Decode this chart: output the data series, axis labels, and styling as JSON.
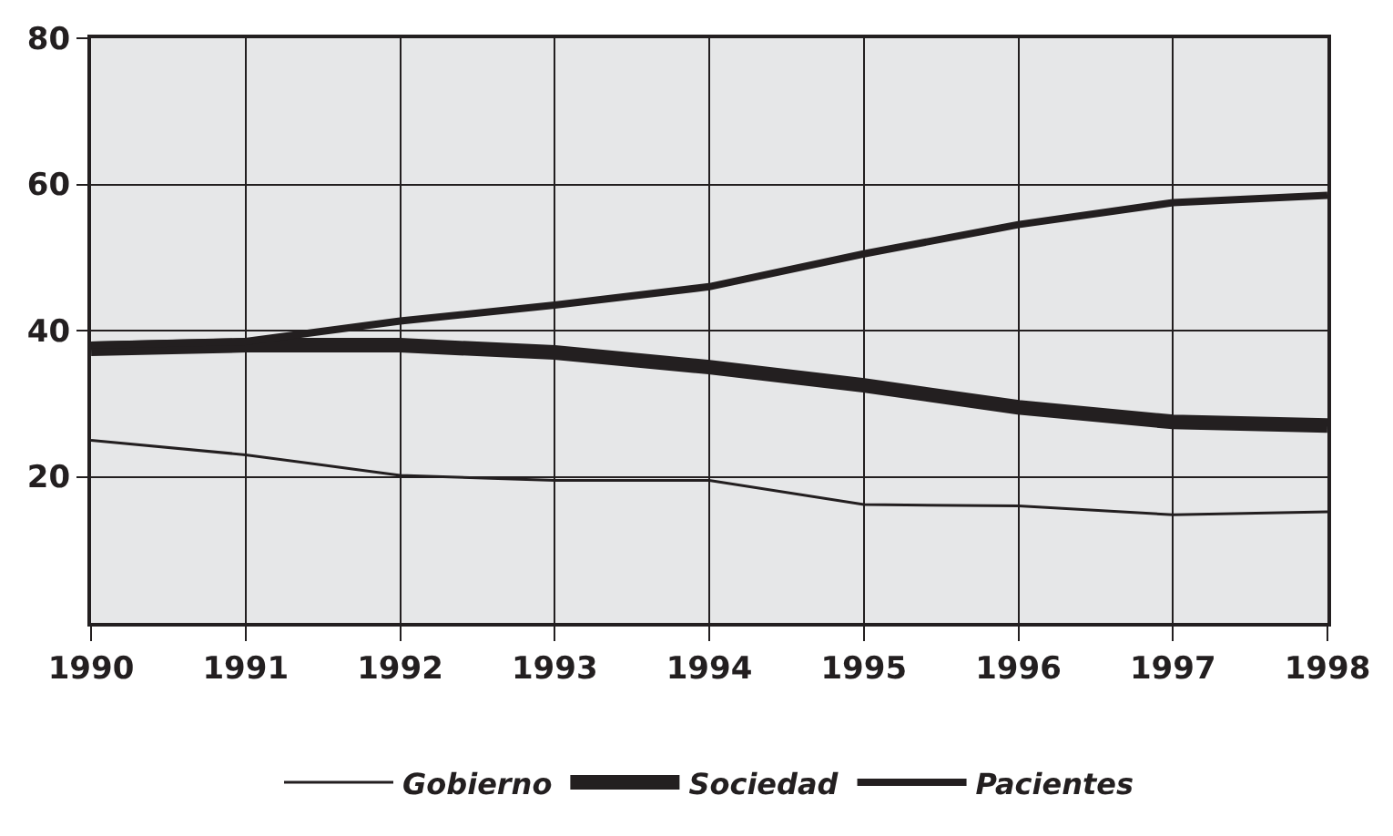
{
  "chart_data": {
    "type": "line",
    "x": [
      1990,
      1991,
      1992,
      1993,
      1994,
      1995,
      1996,
      1997,
      1998
    ],
    "series": [
      {
        "name": "Gobierno",
        "color": "#231f20",
        "values": [
          25,
          23,
          20.2,
          19.5,
          19.5,
          16.2,
          16,
          14.8,
          15.2
        ]
      },
      {
        "name": "Sociedad",
        "color": "#231f20",
        "values": [
          37.5,
          38,
          38,
          37,
          35,
          32.5,
          29.5,
          27.5,
          27
        ]
      },
      {
        "name": "Pacientes",
        "color": "#231f20",
        "values": [
          38,
          38.5,
          41.3,
          43.5,
          46,
          50.5,
          54.5,
          57.5,
          58.5
        ]
      }
    ],
    "xlim": [
      1990,
      1998
    ],
    "xticks": [
      1990,
      1991,
      1992,
      1993,
      1994,
      1995,
      1996,
      1997,
      1998
    ],
    "ylim": [
      0,
      80
    ],
    "yticks": [
      20,
      40,
      60,
      80
    ],
    "grid": true,
    "legend": "bottom",
    "marker": "none",
    "line_style": "solid"
  }
}
